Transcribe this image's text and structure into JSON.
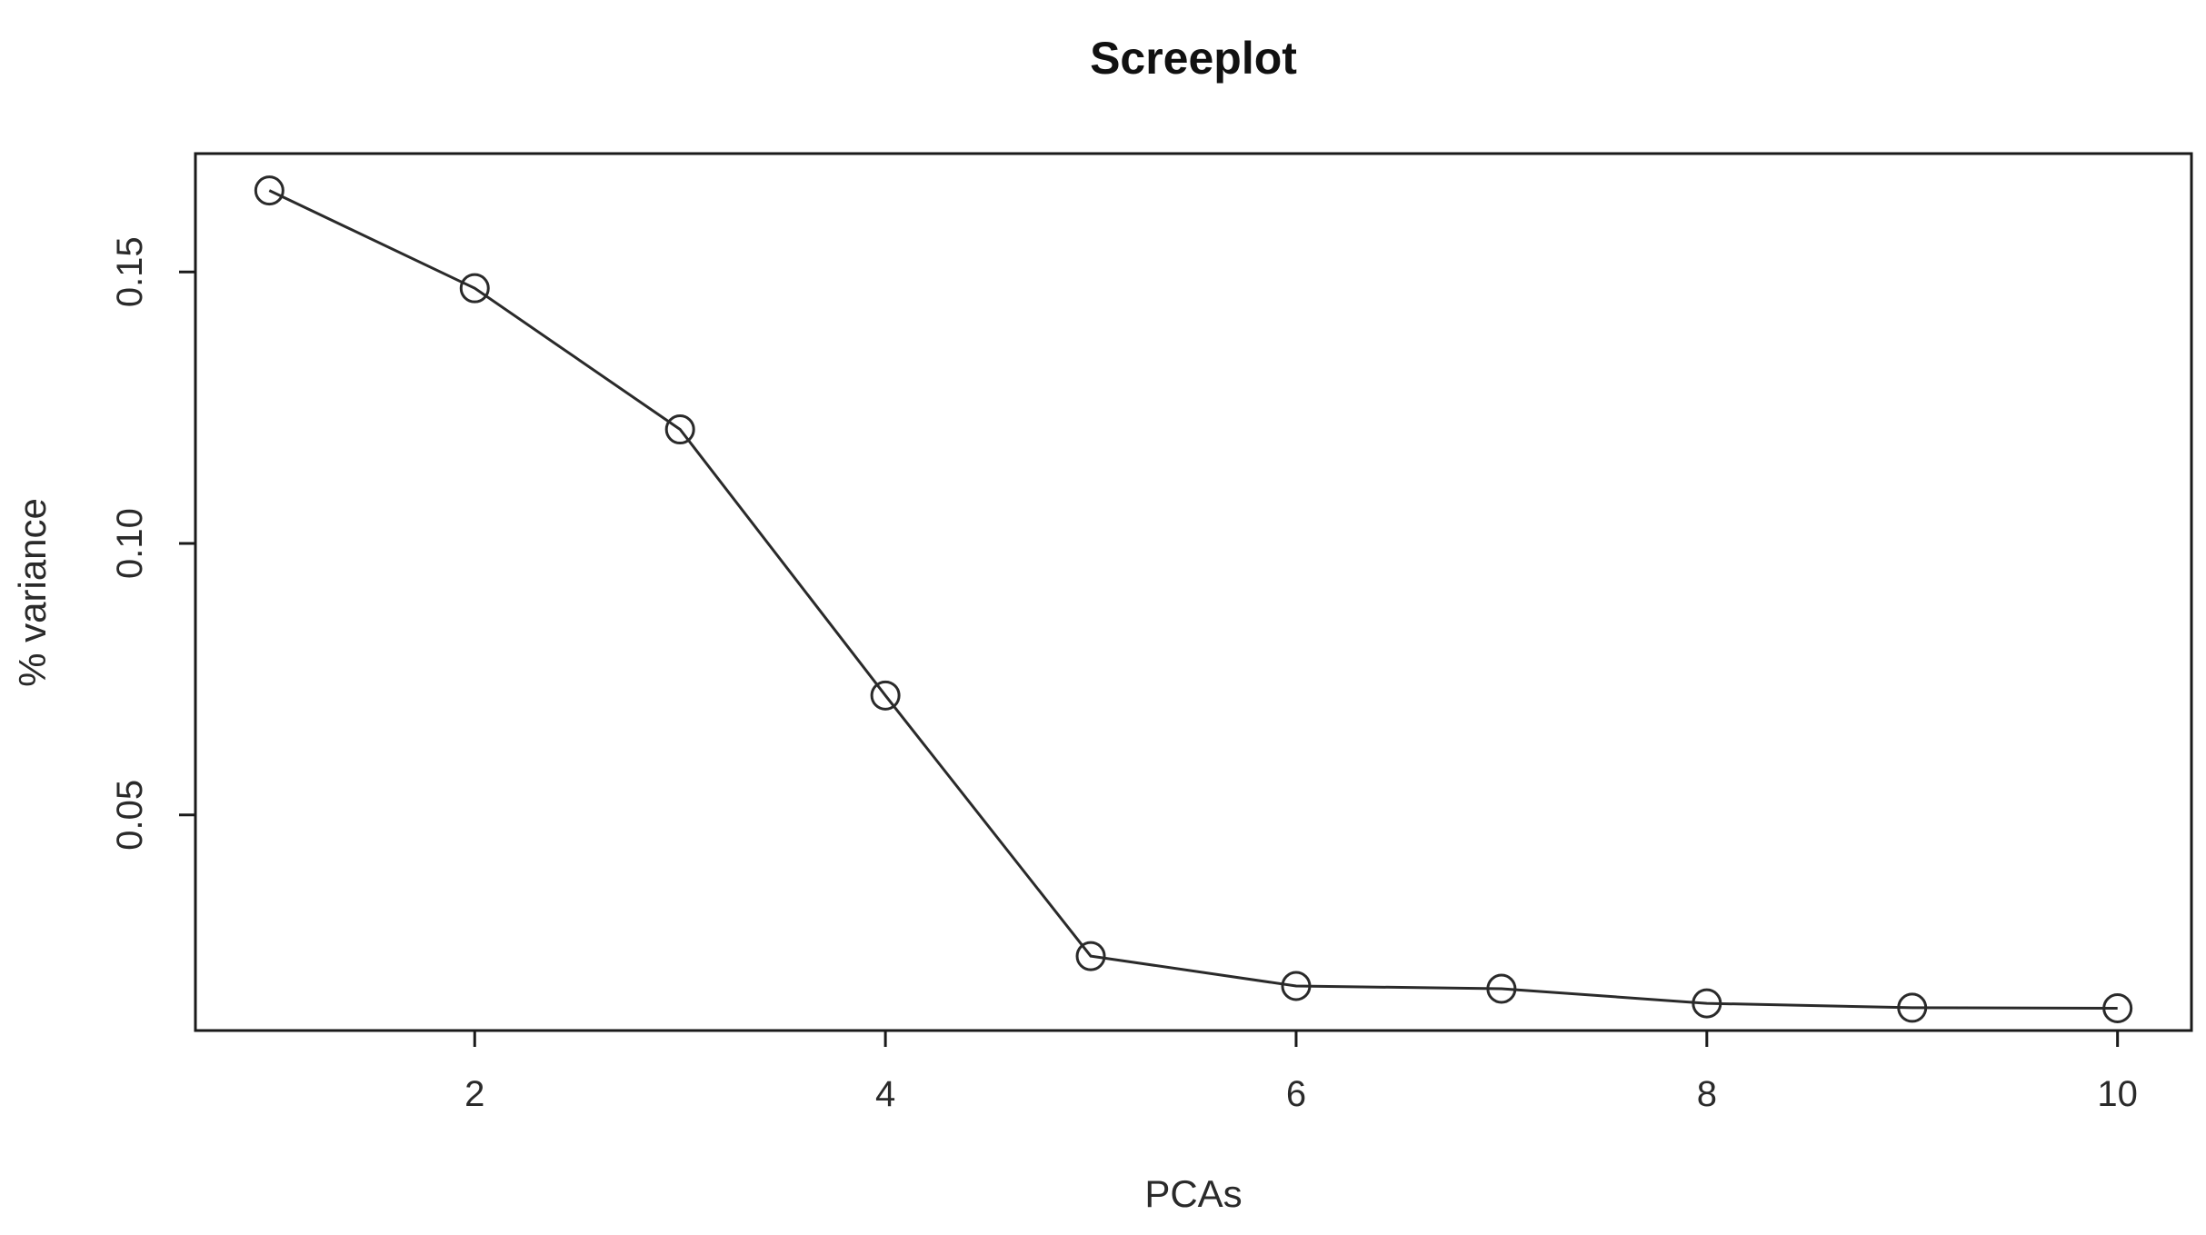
{
  "chart_data": {
    "type": "line",
    "title": "Screeplot",
    "xlabel": "PCAs",
    "ylabel": "% variance",
    "x": [
      1,
      2,
      3,
      4,
      5,
      6,
      7,
      8,
      9,
      10
    ],
    "series": [
      {
        "values": [
          0.165,
          0.147,
          0.121,
          0.072,
          0.024,
          0.0185,
          0.018,
          0.0153,
          0.0145,
          0.0144
        ]
      }
    ],
    "xlim": [
      0.64,
      10.36
    ],
    "ylim": [
      0.0103,
      0.1718
    ],
    "x_ticks": [
      2,
      4,
      6,
      8,
      10
    ],
    "x_tick_labels": [
      "2",
      "4",
      "6",
      "8",
      "10"
    ],
    "y_ticks": [
      0.05,
      0.1,
      0.15
    ],
    "y_tick_labels": [
      "0.05",
      "0.10",
      "0.15"
    ],
    "grid": false,
    "legend": "none",
    "marker": "open-circle",
    "colors": {
      "line": "#2a2a2a",
      "frame": "#1a1a1a",
      "background": "#ffffff"
    }
  }
}
